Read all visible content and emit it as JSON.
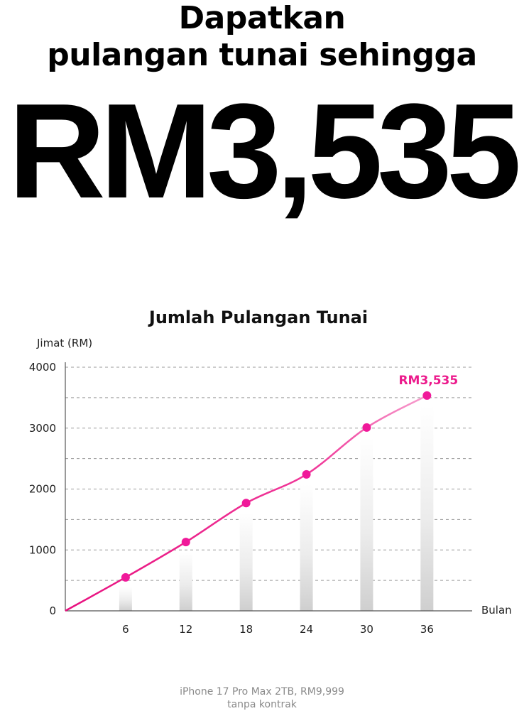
{
  "headline": {
    "line1": "Dapatkan",
    "line2": "pulangan tunai sehingga",
    "amount": "RM3,535"
  },
  "chart_data": {
    "type": "line",
    "title": "Jumlah Pulangan Tunai",
    "ylabel": "Jimat (RM)",
    "xlabel": "Bulan",
    "ylim": [
      0,
      4000
    ],
    "yticks": [
      0,
      1000,
      2000,
      3000,
      4000
    ],
    "x": [
      6,
      12,
      18,
      24,
      30,
      36
    ],
    "series": [
      {
        "values": [
          550,
          1130,
          1770,
          2240,
          3010,
          3535
        ]
      }
    ],
    "end_label": "RM3,535",
    "grid": "dashed horizontal",
    "colors": {
      "line": "#ee1c8e",
      "marker": "#f0199a",
      "label": "#ec1a8c"
    }
  },
  "footnote": {
    "line1": "iPhone 17 Pro Max 2TB, RM9,999",
    "line2": "tanpa kontrak"
  }
}
